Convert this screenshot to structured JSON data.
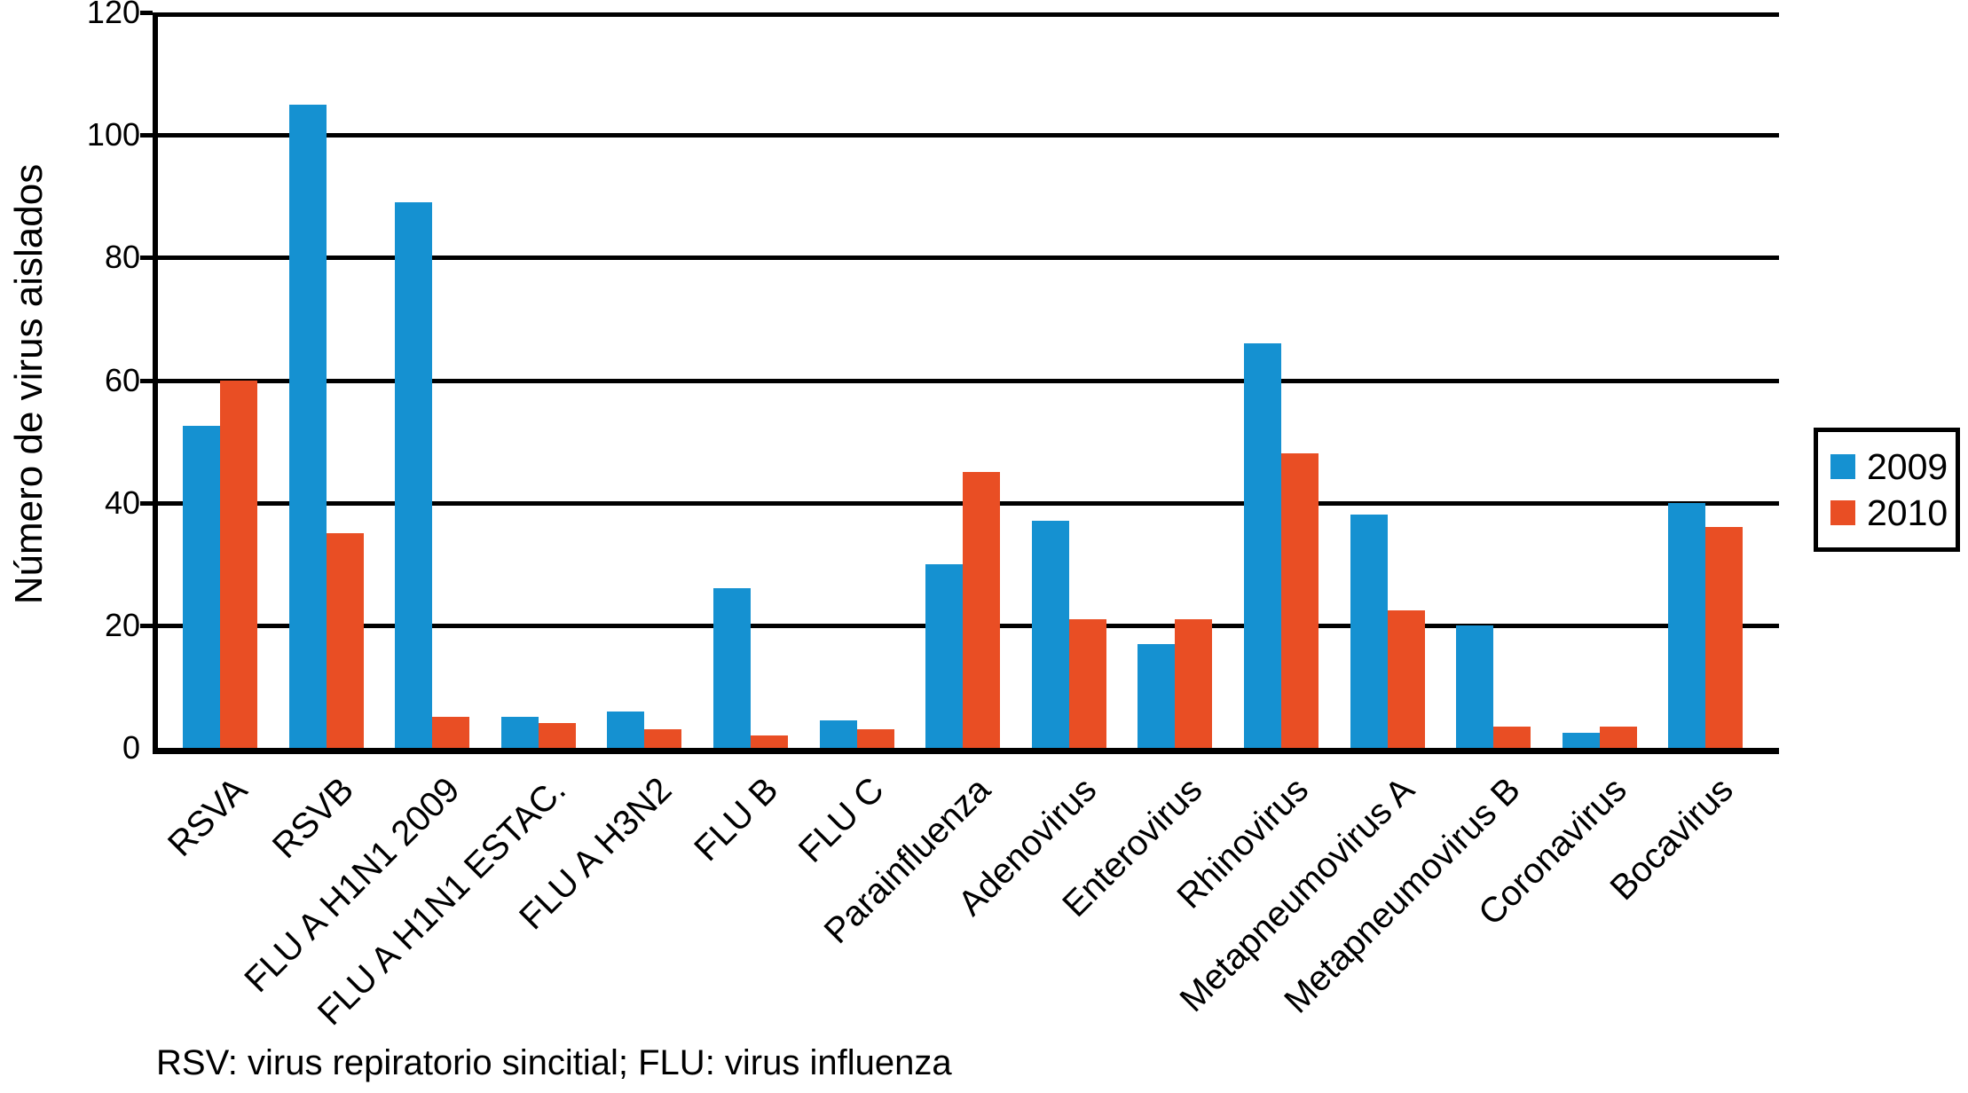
{
  "chart_data": {
    "type": "bar",
    "title": "",
    "ylabel": "Número de virus aislados",
    "xlabel": "",
    "ylim": [
      0,
      120
    ],
    "y_ticks": [
      0,
      20,
      40,
      60,
      80,
      100,
      120
    ],
    "grid": true,
    "legend_position": "right",
    "categories": [
      "RSVA",
      "RSVB",
      "FLU A H1N1 2009",
      "FLU A H1N1 ESTAC.",
      "FLU A H3N2",
      "FLU B",
      "FLU C",
      "Parainfluenza",
      "Adenovirus",
      "Enterovirus",
      "Rhinovirus",
      "Metapneumovirus A",
      "Metapneumovirus B",
      "Coronavirus",
      "Bocavirus"
    ],
    "series": [
      {
        "name": "2009",
        "color": "#1591d1",
        "values": [
          52.5,
          105,
          89,
          5,
          6,
          26,
          4.5,
          30,
          37,
          17,
          66,
          38,
          20,
          2.5,
          40
        ]
      },
      {
        "name": "2010",
        "color": "#e94e24",
        "values": [
          60,
          35,
          5,
          4,
          3,
          2,
          3,
          45,
          21,
          21,
          48,
          22.5,
          3.5,
          3.5,
          36
        ]
      }
    ],
    "footnote": "RSV: virus repiratorio sincitial; FLU: virus influenza",
    "colors": {
      "axis": "#000000",
      "background": "#ffffff",
      "series_2009": "#1591d1",
      "series_2010": "#e94e24"
    }
  }
}
